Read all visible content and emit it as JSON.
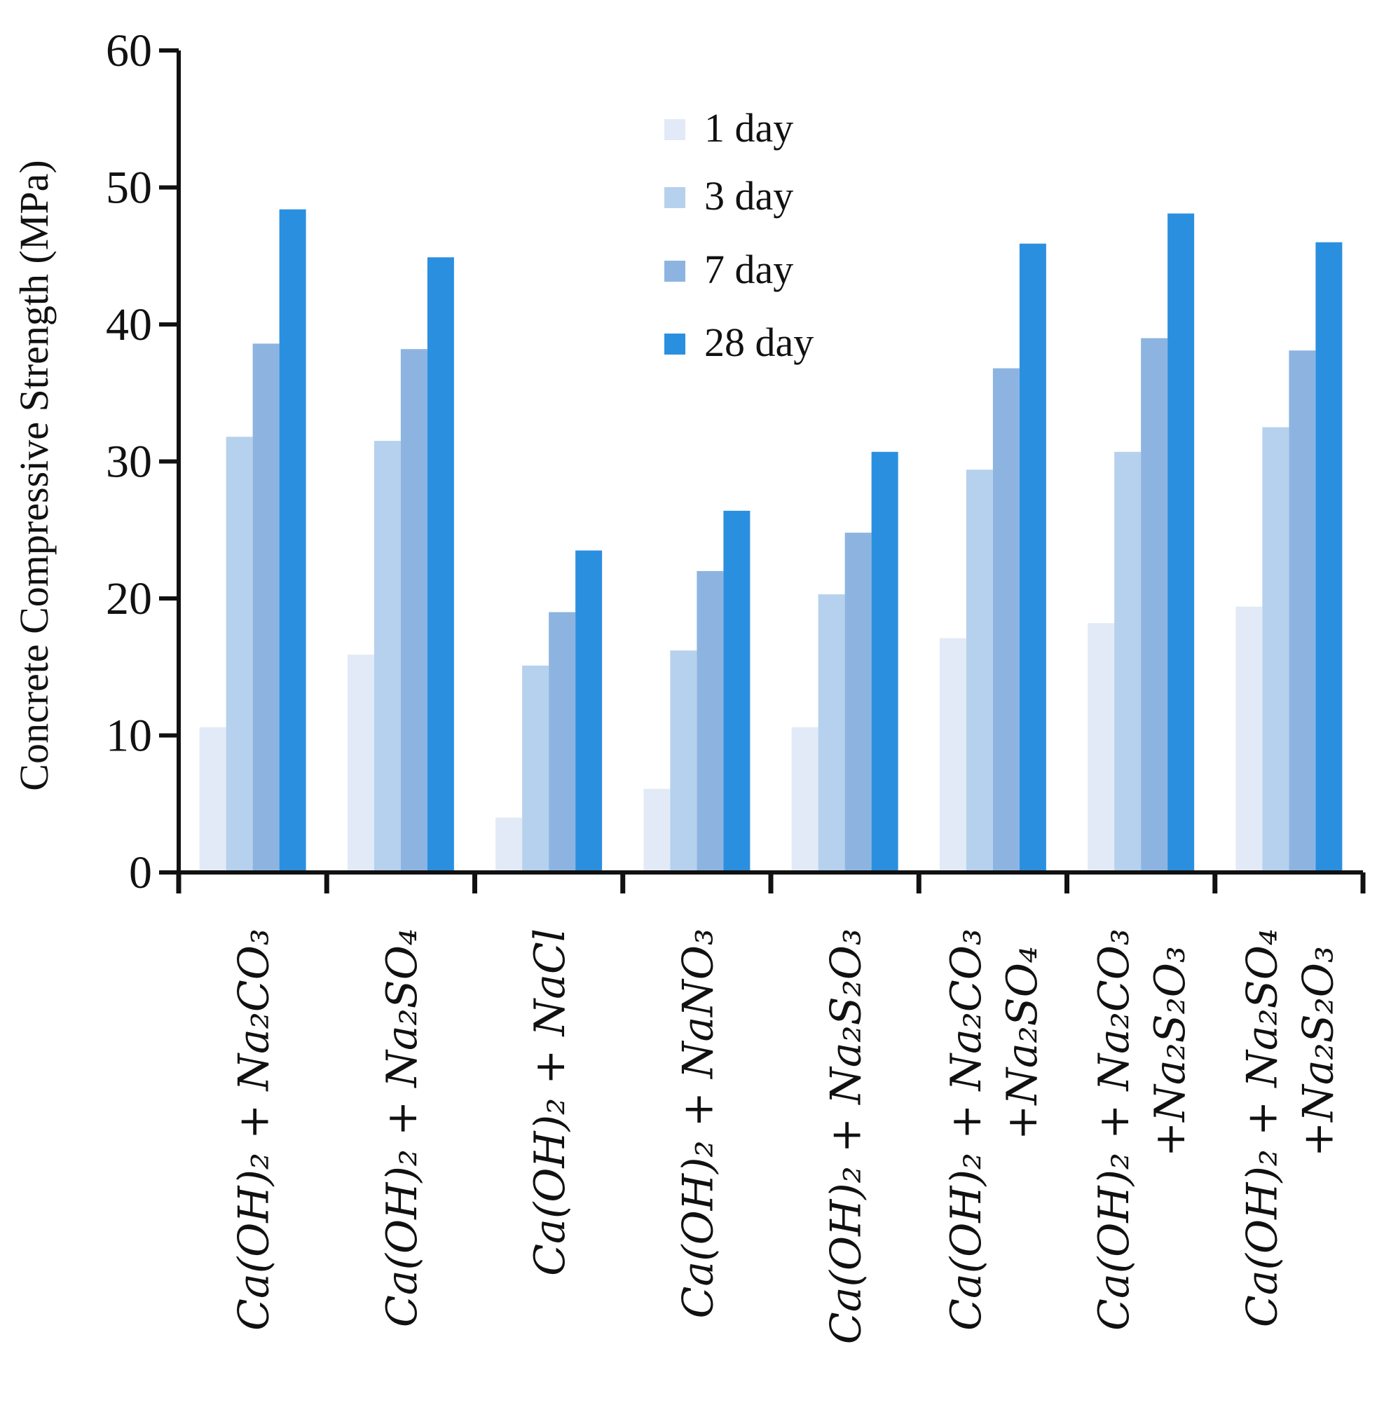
{
  "chart_data": {
    "type": "bar",
    "title": "",
    "xlabel": "",
    "ylabel": "Concrete Compressive Strength (MPa)",
    "ylim": [
      0,
      60
    ],
    "yticks": [
      0,
      10,
      20,
      30,
      40,
      50,
      60
    ],
    "grid": false,
    "legend_position": "top-center",
    "categories": [
      [
        "Ca(OH)₂ + Na₂CO₃"
      ],
      [
        "Ca(OH)₂ + Na₂SO₄"
      ],
      [
        "Ca(OH)₂ + NaCl"
      ],
      [
        "Ca(OH)₂ + NaNO₃"
      ],
      [
        "Ca(OH)₂ + Na₂S₂O₃"
      ],
      [
        "Ca(OH)₂ + Na₂CO₃",
        "+Na₂SO₄"
      ],
      [
        "Ca(OH)₂ + Na₂CO₃",
        "+Na₂S₂O₃"
      ],
      [
        "Ca(OH)₂ + Na₂SO₄",
        "+Na₂S₂O₃"
      ]
    ],
    "series": [
      {
        "name": "1 day",
        "color": "#e1eaf6",
        "values": [
          10.6,
          15.9,
          4.0,
          6.1,
          10.6,
          17.1,
          18.2,
          19.4
        ]
      },
      {
        "name": "3 day",
        "color": "#b6d1ed",
        "values": [
          31.8,
          31.5,
          15.1,
          16.2,
          20.3,
          29.4,
          30.7,
          32.5
        ]
      },
      {
        "name": "7 day",
        "color": "#8db4e1",
        "values": [
          38.6,
          38.2,
          19.0,
          22.0,
          24.8,
          36.8,
          39.0,
          38.1
        ]
      },
      {
        "name": "28 day",
        "color": "#2b8fe0",
        "values": [
          48.4,
          44.9,
          23.5,
          26.4,
          30.7,
          45.9,
          48.1,
          46.0
        ]
      }
    ]
  }
}
